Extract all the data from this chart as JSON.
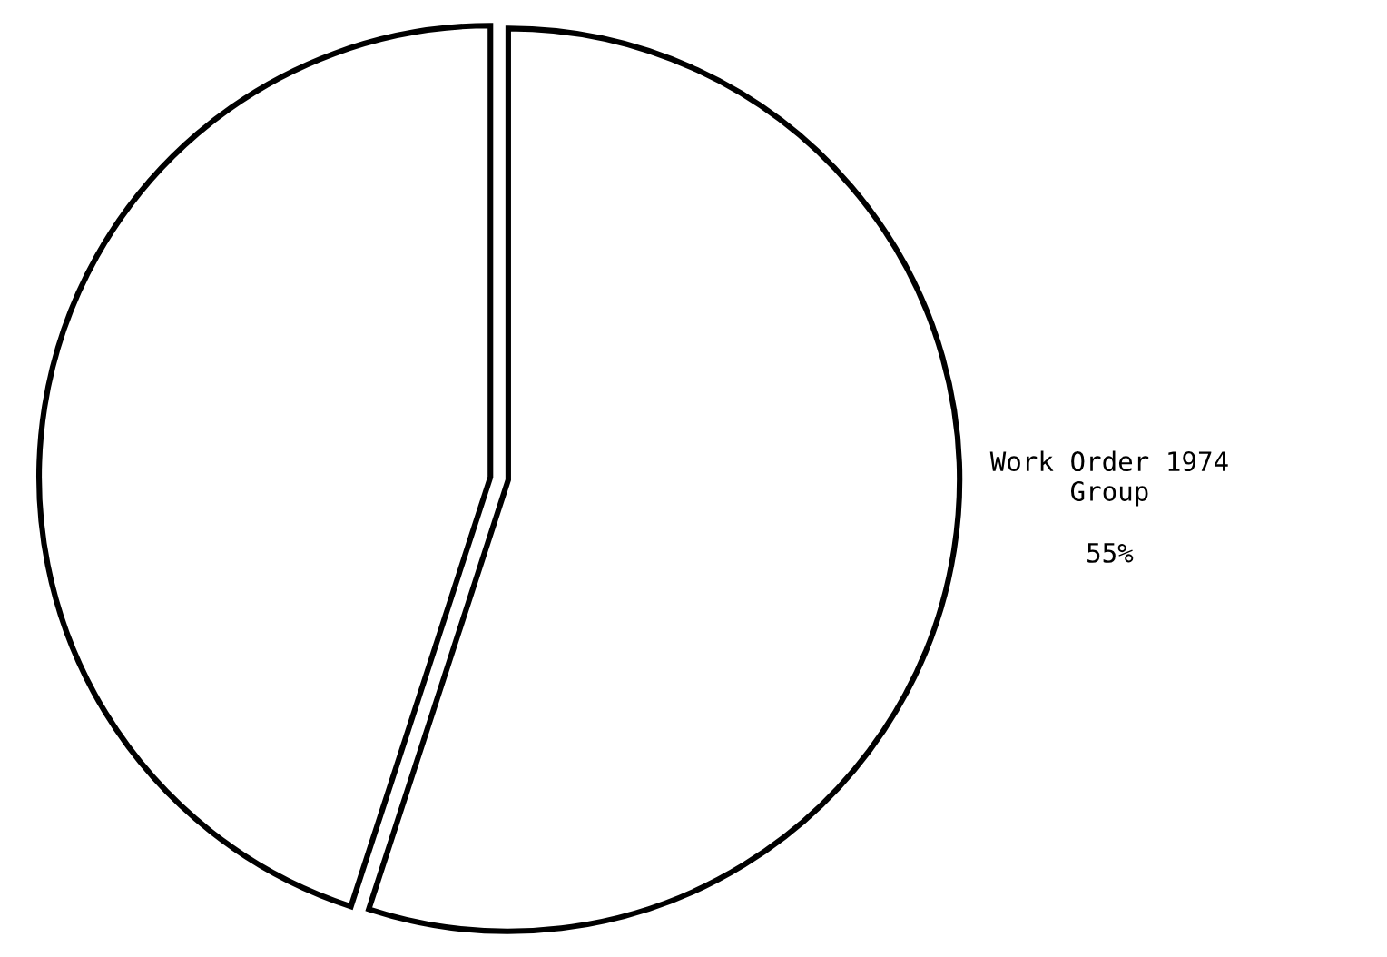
{
  "chart_data": {
    "type": "pie",
    "categories": [
      "Work Order 1974\nGroup",
      null
    ],
    "values": [
      55,
      45
    ],
    "colors": [
      "#ffffff",
      "#ffffff"
    ],
    "value_labels": [
      "55%",
      null
    ]
  }
}
